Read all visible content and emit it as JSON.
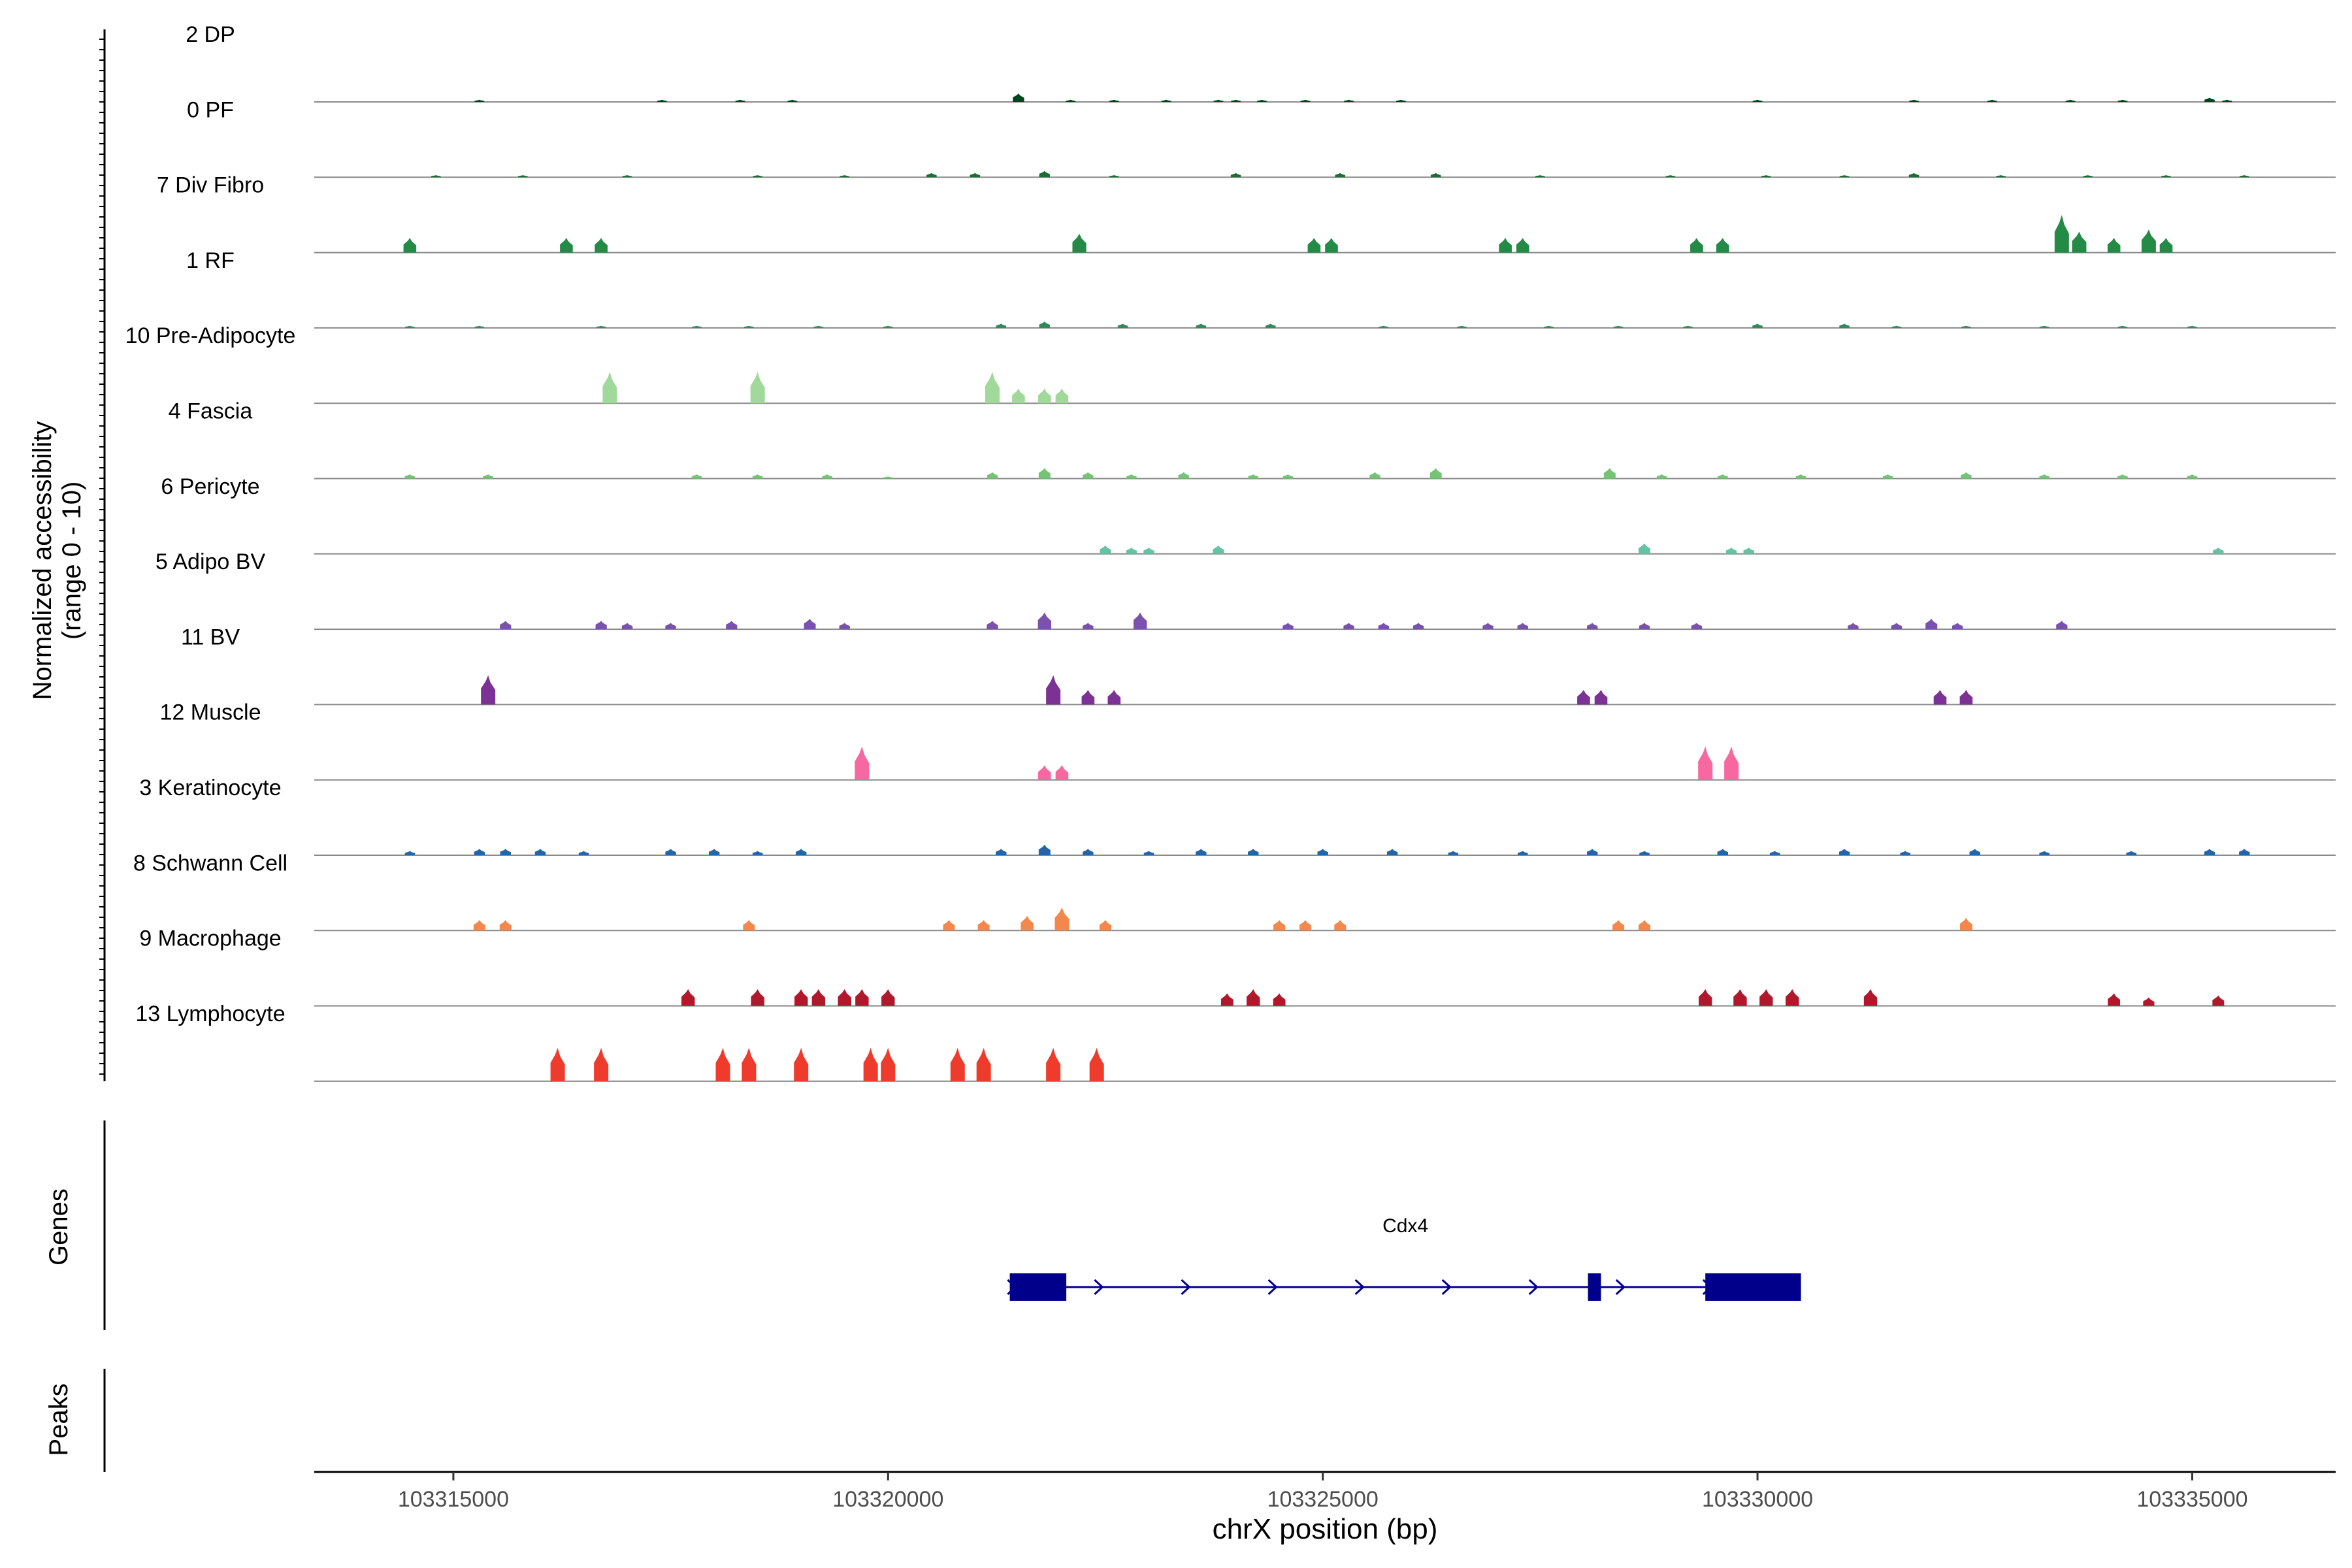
{
  "chart_data": {
    "type": "area",
    "title": "",
    "ylabel_main": "Normalized accessibility",
    "ylabel_sub": "(range 0 - 10)",
    "xlabel": "chrX position (bp)",
    "xlim": [
      103313400,
      103336650
    ],
    "ylim": [
      0,
      10
    ],
    "x_ticks": [
      103315000,
      103320000,
      103325000,
      103330000,
      103335000
    ],
    "x_tick_labels": [
      "103315000",
      "103320000",
      "103325000",
      "103330000",
      "103335000"
    ],
    "tracks": [
      {
        "label": "2 DP",
        "color": "#00441b",
        "peaks": [
          [
            103315300,
            1
          ],
          [
            103317400,
            1
          ],
          [
            103318300,
            1
          ],
          [
            103318900,
            1
          ],
          [
            103321500,
            4
          ],
          [
            103322100,
            1
          ],
          [
            103322600,
            1
          ],
          [
            103323200,
            1
          ],
          [
            103323800,
            1
          ],
          [
            103324000,
            1
          ],
          [
            103324300,
            1
          ],
          [
            103324800,
            1
          ],
          [
            103325300,
            1
          ],
          [
            103325900,
            1
          ],
          [
            103330000,
            1
          ],
          [
            103331800,
            1
          ],
          [
            103332700,
            1
          ],
          [
            103333600,
            1
          ],
          [
            103334200,
            1
          ],
          [
            103335200,
            2
          ],
          [
            103335400,
            1
          ]
        ]
      },
      {
        "label": "0 PF",
        "color": "#1b6e32",
        "peaks": [
          [
            103314800,
            1
          ],
          [
            103315800,
            1
          ],
          [
            103317000,
            1
          ],
          [
            103318500,
            1
          ],
          [
            103319500,
            1
          ],
          [
            103320500,
            2
          ],
          [
            103321000,
            2
          ],
          [
            103321800,
            3
          ],
          [
            103322600,
            1
          ],
          [
            103324000,
            2
          ],
          [
            103325200,
            2
          ],
          [
            103326300,
            2
          ],
          [
            103327500,
            1
          ],
          [
            103329000,
            1
          ],
          [
            103330100,
            1
          ],
          [
            103331000,
            1
          ],
          [
            103331800,
            2
          ],
          [
            103332800,
            1
          ],
          [
            103333800,
            1
          ],
          [
            103334700,
            1
          ],
          [
            103335600,
            1
          ]
        ]
      },
      {
        "label": "7 Div Fibro",
        "color": "#238b45",
        "peaks": [
          [
            103314500,
            7
          ],
          [
            103316300,
            7
          ],
          [
            103316700,
            7
          ],
          [
            103322200,
            9
          ],
          [
            103324900,
            7
          ],
          [
            103325100,
            7
          ],
          [
            103327100,
            7
          ],
          [
            103327300,
            7
          ],
          [
            103329300,
            7
          ],
          [
            103329600,
            7
          ],
          [
            103333500,
            18
          ],
          [
            103333700,
            10
          ],
          [
            103334100,
            7
          ],
          [
            103334500,
            11
          ],
          [
            103334700,
            7
          ]
        ]
      },
      {
        "label": "1 RF",
        "color": "#2e8b57",
        "peaks": [
          [
            103314500,
            1
          ],
          [
            103315300,
            1
          ],
          [
            103316700,
            1
          ],
          [
            103317800,
            1
          ],
          [
            103318400,
            1
          ],
          [
            103319200,
            1
          ],
          [
            103320000,
            1
          ],
          [
            103321300,
            2
          ],
          [
            103321800,
            3
          ],
          [
            103322700,
            2
          ],
          [
            103323600,
            2
          ],
          [
            103324400,
            2
          ],
          [
            103325700,
            1
          ],
          [
            103326600,
            1
          ],
          [
            103327600,
            1
          ],
          [
            103328400,
            1
          ],
          [
            103329200,
            1
          ],
          [
            103330000,
            2
          ],
          [
            103331000,
            2
          ],
          [
            103331600,
            1
          ],
          [
            103332400,
            1
          ],
          [
            103333300,
            1
          ],
          [
            103334200,
            1
          ],
          [
            103335000,
            1
          ]
        ]
      },
      {
        "label": "10 Pre-Adipocyte",
        "color": "#a1d99b",
        "peaks": [
          [
            103316800,
            15
          ],
          [
            103318500,
            15
          ],
          [
            103321200,
            15
          ],
          [
            103321500,
            7
          ],
          [
            103321800,
            7
          ],
          [
            103322000,
            7
          ]
        ]
      },
      {
        "label": "4 Fascia",
        "color": "#74c476",
        "peaks": [
          [
            103314500,
            2
          ],
          [
            103315400,
            2
          ],
          [
            103317800,
            2
          ],
          [
            103318500,
            2
          ],
          [
            103319300,
            2
          ],
          [
            103320000,
            1
          ],
          [
            103321200,
            3
          ],
          [
            103321800,
            5
          ],
          [
            103322300,
            3
          ],
          [
            103322800,
            2
          ],
          [
            103323400,
            3
          ],
          [
            103324200,
            2
          ],
          [
            103324600,
            2
          ],
          [
            103325600,
            3
          ],
          [
            103326300,
            5
          ],
          [
            103328300,
            5
          ],
          [
            103328900,
            2
          ],
          [
            103329600,
            2
          ],
          [
            103330500,
            2
          ],
          [
            103331500,
            2
          ],
          [
            103332400,
            3
          ],
          [
            103333300,
            2
          ],
          [
            103334200,
            2
          ],
          [
            103335000,
            2
          ]
        ]
      },
      {
        "label": "6 Pericyte",
        "color": "#66c2a5",
        "peaks": [
          [
            103322500,
            4
          ],
          [
            103322800,
            3
          ],
          [
            103323000,
            3
          ],
          [
            103323800,
            4
          ],
          [
            103328700,
            5
          ],
          [
            103329700,
            3
          ],
          [
            103329900,
            3
          ],
          [
            103335300,
            3
          ]
        ]
      },
      {
        "label": "5 Adipo BV",
        "color": "#7b52ab",
        "peaks": [
          [
            103315600,
            4
          ],
          [
            103316700,
            4
          ],
          [
            103317000,
            3
          ],
          [
            103317500,
            3
          ],
          [
            103318200,
            4
          ],
          [
            103319100,
            5
          ],
          [
            103319500,
            3
          ],
          [
            103321200,
            4
          ],
          [
            103321800,
            8
          ],
          [
            103322300,
            3
          ],
          [
            103322900,
            8
          ],
          [
            103324600,
            3
          ],
          [
            103325300,
            3
          ],
          [
            103325700,
            3
          ],
          [
            103326100,
            3
          ],
          [
            103326900,
            3
          ],
          [
            103327300,
            3
          ],
          [
            103328100,
            3
          ],
          [
            103328700,
            3
          ],
          [
            103329300,
            3
          ],
          [
            103331100,
            3
          ],
          [
            103331600,
            3
          ],
          [
            103332000,
            5
          ],
          [
            103332300,
            3
          ],
          [
            103333500,
            4
          ]
        ]
      },
      {
        "label": "11 BV",
        "color": "#7b3294",
        "peaks": [
          [
            103315400,
            14
          ],
          [
            103321900,
            14
          ],
          [
            103322300,
            7
          ],
          [
            103322600,
            7
          ],
          [
            103328000,
            7
          ],
          [
            103328200,
            7
          ],
          [
            103332100,
            7
          ],
          [
            103332400,
            7
          ]
        ]
      },
      {
        "label": "12 Muscle",
        "color": "#f768a1",
        "peaks": [
          [
            103319700,
            16
          ],
          [
            103321800,
            7
          ],
          [
            103322000,
            7
          ],
          [
            103329400,
            16
          ],
          [
            103329700,
            16
          ]
        ]
      },
      {
        "label": "3 Keratinocyte",
        "color": "#2166ac",
        "peaks": [
          [
            103314500,
            2
          ],
          [
            103315300,
            3
          ],
          [
            103315600,
            3
          ],
          [
            103316000,
            3
          ],
          [
            103316500,
            2
          ],
          [
            103317500,
            3
          ],
          [
            103318000,
            3
          ],
          [
            103318500,
            2
          ],
          [
            103319000,
            3
          ],
          [
            103321300,
            3
          ],
          [
            103321800,
            5
          ],
          [
            103322300,
            3
          ],
          [
            103323000,
            2
          ],
          [
            103323600,
            3
          ],
          [
            103324200,
            3
          ],
          [
            103325000,
            3
          ],
          [
            103325800,
            3
          ],
          [
            103326500,
            2
          ],
          [
            103327300,
            2
          ],
          [
            103328100,
            3
          ],
          [
            103328700,
            2
          ],
          [
            103329600,
            3
          ],
          [
            103330200,
            2
          ],
          [
            103331000,
            3
          ],
          [
            103331700,
            2
          ],
          [
            103332500,
            3
          ],
          [
            103333300,
            2
          ],
          [
            103334300,
            2
          ],
          [
            103335200,
            3
          ],
          [
            103335600,
            3
          ]
        ]
      },
      {
        "label": "8 Schwann Cell",
        "color": "#f4874b",
        "peaks": [
          [
            103315300,
            5
          ],
          [
            103315600,
            5
          ],
          [
            103318400,
            5
          ],
          [
            103320700,
            5
          ],
          [
            103321100,
            5
          ],
          [
            103321600,
            7
          ],
          [
            103322000,
            11
          ],
          [
            103322500,
            5
          ],
          [
            103324500,
            5
          ],
          [
            103324800,
            5
          ],
          [
            103325200,
            5
          ],
          [
            103328400,
            5
          ],
          [
            103328700,
            5
          ],
          [
            103332400,
            6
          ]
        ]
      },
      {
        "label": "9 Macrophage",
        "color": "#b2182b",
        "peaks": [
          [
            103317700,
            8
          ],
          [
            103318500,
            8
          ],
          [
            103319000,
            8
          ],
          [
            103319200,
            8
          ],
          [
            103319500,
            8
          ],
          [
            103319700,
            8
          ],
          [
            103320000,
            8
          ],
          [
            103323900,
            6
          ],
          [
            103324200,
            8
          ],
          [
            103324500,
            6
          ],
          [
            103329400,
            8
          ],
          [
            103329800,
            8
          ],
          [
            103330100,
            8
          ],
          [
            103330400,
            8
          ],
          [
            103331300,
            8
          ],
          [
            103334100,
            6
          ],
          [
            103334500,
            4
          ],
          [
            103335300,
            5
          ]
        ]
      },
      {
        "label": "13 Lymphocyte",
        "color": "#ef3b2c",
        "peaks": [
          [
            103316200,
            16
          ],
          [
            103316700,
            16
          ],
          [
            103318100,
            16
          ],
          [
            103318400,
            16
          ],
          [
            103319000,
            16
          ],
          [
            103319800,
            16
          ],
          [
            103320000,
            16
          ],
          [
            103320800,
            16
          ],
          [
            103321100,
            16
          ],
          [
            103321900,
            16
          ],
          [
            103322400,
            16
          ]
        ]
      }
    ],
    "genes": {
      "label": "Genes",
      "name": "Cdx4",
      "color": "#00008b",
      "start": 103321400,
      "end": 103330500,
      "exons": [
        [
          103321400,
          103322050
        ],
        [
          103328050,
          103328200
        ],
        [
          103329400,
          103330500
        ]
      ]
    },
    "peaks_track": {
      "label": "Peaks"
    }
  }
}
